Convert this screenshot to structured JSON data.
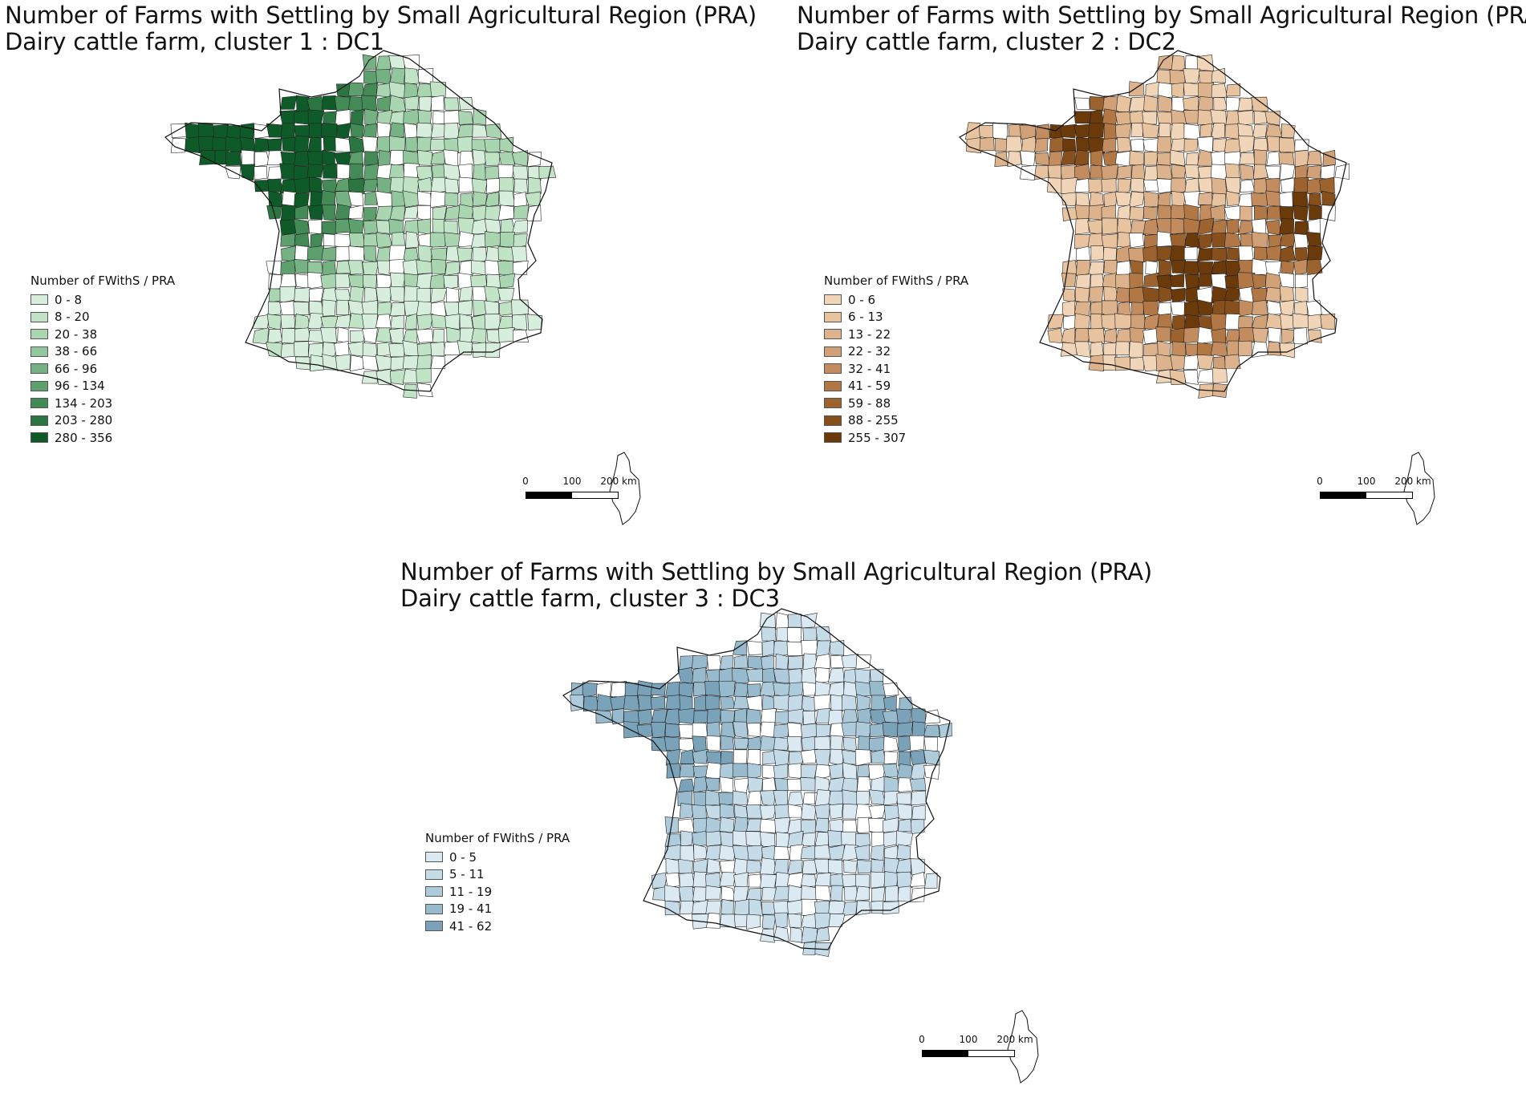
{
  "panels": [
    {
      "title_line1": "Number of Farms with Settling by Small Agricultural Region (PRA)",
      "title_line2": "Dairy cattle farm, cluster 1  : DC1",
      "legend_title": "Number of FWithS  / PRA",
      "legend_items": [
        {
          "label": "0 - 8",
          "color": "#d6eedb"
        },
        {
          "label": "8 - 20",
          "color": "#c1e4c7"
        },
        {
          "label": "20 - 38",
          "color": "#a9d5b1"
        },
        {
          "label": "38 - 66",
          "color": "#92c69c"
        },
        {
          "label": "66 - 96",
          "color": "#76b183"
        },
        {
          "label": "96 - 134",
          "color": "#5d9f6d"
        },
        {
          "label": "134 - 203",
          "color": "#448a57"
        },
        {
          "label": "203 - 280",
          "color": "#2b7541"
        },
        {
          "label": "280 - 356",
          "color": "#0e5a28"
        }
      ],
      "scale_labels": [
        "0",
        "100",
        "200 km"
      ]
    },
    {
      "title_line1": "Number of Farms with Settling by Small Agricultural Region (PRA)",
      "title_line2": "Dairy cattle farm, cluster 2  : DC2",
      "legend_title": "Number of FWithS  / PRA",
      "legend_items": [
        {
          "label": "0 - 6",
          "color": "#f1d5b8"
        },
        {
          "label": "6 - 13",
          "color": "#e7c39f"
        },
        {
          "label": "13 - 22",
          "color": "#dcb38c"
        },
        {
          "label": "22 - 32",
          "color": "#d0a077"
        },
        {
          "label": "32 - 41",
          "color": "#c28c5f"
        },
        {
          "label": "41 - 59",
          "color": "#b17845"
        },
        {
          "label": "59 - 88",
          "color": "#9c632f"
        },
        {
          "label": "88 - 255",
          "color": "#864f1c"
        },
        {
          "label": "255 - 307",
          "color": "#6b3a0b"
        }
      ],
      "scale_labels": [
        "0",
        "100",
        "200 km"
      ]
    },
    {
      "title_line1": "Number of Farms with Settling by Small Agricultural Region (PRA)",
      "title_line2": "Dairy cattle farm, cluster 3  : DC3",
      "legend_title": "Number of FWithS  / PRA",
      "legend_items": [
        {
          "label": "0 - 5",
          "color": "#dbe9f3"
        },
        {
          "label": "5 - 11",
          "color": "#c6dbe8"
        },
        {
          "label": "11 - 19",
          "color": "#aecbdc"
        },
        {
          "label": "19 - 41",
          "color": "#98bacd"
        },
        {
          "label": "41 - 62",
          "color": "#7aa2b8"
        }
      ],
      "scale_labels": [
        "0",
        "100",
        "200 km"
      ]
    }
  ]
}
